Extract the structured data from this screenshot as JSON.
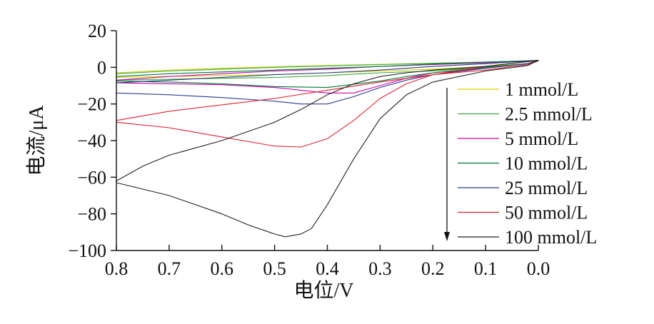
{
  "chart_data": {
    "type": "line",
    "xlabel": "电位/V",
    "ylabel": "电流/μA",
    "xlim": [
      0.8,
      0.0
    ],
    "ylim": [
      -100,
      20
    ],
    "x_reversed": true,
    "xticks": [
      0.8,
      0.7,
      0.6,
      0.5,
      0.4,
      0.3,
      0.2,
      0.1,
      0.0
    ],
    "xtick_labels": [
      "0.8",
      "0.7",
      "0.6",
      "0.5",
      "0.4",
      "0.3",
      "0.2",
      "0.1",
      "0.0"
    ],
    "yticks": [
      20,
      0,
      -20,
      -40,
      -60,
      -80,
      -100
    ],
    "ytick_labels": [
      "20",
      "0",
      "−20",
      "−40",
      "−60",
      "−80",
      "−100"
    ],
    "grid": false,
    "legend_position": "right",
    "arrow_annotation": "downward arrow beside legend indicating increasing concentration",
    "series": [
      {
        "name": "1 mmol/L",
        "color": "#d8d000",
        "x": [
          0.8,
          0.7,
          0.6,
          0.5,
          0.4,
          0.3,
          0.2,
          0.1,
          0.0,
          0.02,
          0.1,
          0.2,
          0.3,
          0.4,
          0.5,
          0.6,
          0.7,
          0.8
        ],
        "y": [
          -3,
          -1.5,
          -0.5,
          0.3,
          1,
          1.6,
          2.2,
          2.8,
          3.3,
          2,
          0.5,
          -1,
          -2,
          -3,
          -4,
          -4.5,
          -5,
          -5.5
        ]
      },
      {
        "name": "2.5 mmol/L",
        "color": "#3aa83a",
        "x": [
          0.8,
          0.7,
          0.6,
          0.5,
          0.4,
          0.3,
          0.2,
          0.1,
          0.0,
          0.02,
          0.1,
          0.2,
          0.3,
          0.4,
          0.5,
          0.6,
          0.7,
          0.8
        ],
        "y": [
          -3.5,
          -2,
          -1,
          0,
          0.8,
          1.5,
          2.2,
          2.9,
          3.6,
          2,
          0,
          -2,
          -3,
          -4.5,
          -5.5,
          -6,
          -6.5,
          -7
        ]
      },
      {
        "name": "5 mmol/L",
        "color": "#cc00aa",
        "x": [
          0.8,
          0.7,
          0.6,
          0.5,
          0.4,
          0.3,
          0.2,
          0.1,
          0.0,
          0.02,
          0.1,
          0.2,
          0.25,
          0.3,
          0.35,
          0.4,
          0.5,
          0.6,
          0.7,
          0.8
        ],
        "y": [
          -7,
          -5,
          -3.5,
          -2,
          -1,
          0.5,
          1.5,
          2.5,
          3.5,
          2,
          -0.5,
          -3,
          -6,
          -10,
          -14,
          -14,
          -11,
          -9.5,
          -9,
          -8.5
        ]
      },
      {
        "name": "10 mmol/L",
        "color": "#007a3a",
        "x": [
          0.8,
          0.7,
          0.6,
          0.5,
          0.4,
          0.3,
          0.2,
          0.1,
          0.0,
          0.02,
          0.1,
          0.2,
          0.25,
          0.3,
          0.4,
          0.5,
          0.6,
          0.7,
          0.8
        ],
        "y": [
          -5,
          -3.5,
          -2.5,
          -1.5,
          -0.5,
          0.5,
          1.8,
          2.8,
          3.8,
          2,
          0,
          -3,
          -5,
          -7.5,
          -11,
          -10.5,
          -9,
          -8,
          -7.5
        ]
      },
      {
        "name": "25 mmol/L",
        "color": "#2a3a8a",
        "x": [
          0.8,
          0.7,
          0.6,
          0.5,
          0.4,
          0.3,
          0.2,
          0.1,
          0.0,
          0.02,
          0.1,
          0.2,
          0.25,
          0.3,
          0.35,
          0.4,
          0.45,
          0.5,
          0.6,
          0.7,
          0.8
        ],
        "y": [
          -8.5,
          -7,
          -5.5,
          -4,
          -3,
          -1.5,
          0.5,
          2,
          3.8,
          2,
          -0.5,
          -4,
          -7,
          -11,
          -16,
          -20,
          -20,
          -18.5,
          -16.5,
          -15,
          -14
        ]
      },
      {
        "name": "50 mmol/L",
        "color": "#e02030",
        "x": [
          0.8,
          0.7,
          0.6,
          0.5,
          0.4,
          0.3,
          0.2,
          0.1,
          0.0,
          0.02,
          0.1,
          0.2,
          0.25,
          0.3,
          0.35,
          0.4,
          0.45,
          0.5,
          0.6,
          0.7,
          0.8
        ],
        "y": [
          -29,
          -24,
          -20.5,
          -17,
          -12.5,
          -8,
          -4,
          0.5,
          3.8,
          1.5,
          -1.5,
          -4,
          -9,
          -17,
          -29,
          -39,
          -43.5,
          -43,
          -38,
          -33,
          -30
        ]
      },
      {
        "name": "100 mmol/L",
        "color": "#222222",
        "x": [
          0.8,
          0.75,
          0.7,
          0.6,
          0.5,
          0.45,
          0.4,
          0.35,
          0.3,
          0.25,
          0.2,
          0.1,
          0.0,
          0.02,
          0.1,
          0.2,
          0.25,
          0.3,
          0.35,
          0.4,
          0.43,
          0.45,
          0.48,
          0.5,
          0.55,
          0.6,
          0.7,
          0.8
        ],
        "y": [
          -62,
          -54,
          -48,
          -40,
          -30,
          -23,
          -15,
          -9,
          -5,
          -3,
          -1.5,
          0.5,
          3.8,
          1,
          -2,
          -8,
          -15,
          -28,
          -50,
          -75,
          -88,
          -91,
          -92.5,
          -91,
          -86,
          -80,
          -70,
          -63
        ]
      }
    ]
  }
}
